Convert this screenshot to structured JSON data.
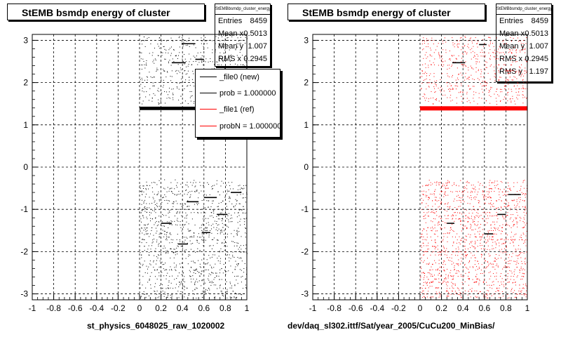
{
  "chart_data": [
    {
      "type": "scatter",
      "title": "StEMB bsmdp energy of cluster",
      "xlabel": "st_physics_6048025_raw_1020002",
      "xlim": [
        -1,
        1
      ],
      "ylim": [
        -3.14,
        3.14
      ],
      "x_ticks": [
        -1,
        -0.8,
        -0.6,
        -0.4,
        -0.2,
        0,
        0.2,
        0.4,
        0.6,
        0.8,
        1
      ],
      "y_ticks": [
        -3,
        -2,
        -1,
        0,
        1,
        2,
        3
      ],
      "grid": true,
      "marker_color": "#000000",
      "stats": {
        "name": "StEMBbsmdp_cluster_energy",
        "rows": [
          {
            "label": "Entries",
            "value": "8459"
          },
          {
            "label": "Mean x",
            "value": "0.5013"
          },
          {
            "label": "Mean y",
            "value": "1.007"
          },
          {
            "label": "RMS x",
            "value": "0.2945"
          }
        ]
      },
      "legend": {
        "placement": "right",
        "entries": [
          {
            "label": "_file0 (new)",
            "color": "#000000"
          },
          {
            "label": "prob = 1.000000",
            "color": "#000000"
          },
          {
            "label": "_file1 (ref)",
            "color": "#ff0000"
          },
          {
            "label": "probN = 1.000000",
            "color": "#ff0000"
          }
        ]
      },
      "bands": [
        {
          "x_range": [
            0,
            1
          ],
          "y": 1.39,
          "thickness": 0.08
        }
      ],
      "segments": [
        {
          "x": [
            0.4,
            0.52
          ],
          "y": 2.92
        },
        {
          "x": [
            0.3,
            0.43
          ],
          "y": 2.47
        },
        {
          "x": [
            0.52,
            0.6
          ],
          "y": 2.55
        },
        {
          "x": [
            0.2,
            0.3
          ],
          "y": -1.33
        },
        {
          "x": [
            0.44,
            0.55
          ],
          "y": -0.82
        },
        {
          "x": [
            0.6,
            0.72
          ],
          "y": -0.72
        },
        {
          "x": [
            0.85,
            0.95
          ],
          "y": -0.6
        },
        {
          "x": [
            0.72,
            0.82
          ],
          "y": -1.12
        },
        {
          "x": [
            0.58,
            0.66
          ],
          "y": -1.55
        },
        {
          "x": [
            0.36,
            0.45
          ],
          "y": -1.82
        }
      ],
      "cloud": [
        {
          "x_range": [
            0,
            1
          ],
          "y_range": [
            1.5,
            3.1
          ],
          "density": 500
        },
        {
          "x_range": [
            0,
            1
          ],
          "y_range": [
            -3.1,
            -0.3
          ],
          "density": 1100
        }
      ]
    },
    {
      "type": "scatter",
      "title": "StEMB bsmdp energy of cluster",
      "xlabel": "dev/daq_sl302.ittf/Sat/year_2005/CuCu200_MinBias/",
      "xlim": [
        -1,
        1
      ],
      "ylim": [
        -3.14,
        3.14
      ],
      "x_ticks": [
        -1,
        -0.8,
        -0.6,
        -0.4,
        -0.2,
        0,
        0.2,
        0.4,
        0.6,
        0.8,
        1
      ],
      "y_ticks": [
        -3,
        -2,
        -1,
        0,
        1,
        2,
        3
      ],
      "grid": true,
      "marker_color": "#ff0000",
      "segment_color": "#000000",
      "stats": {
        "name": "StEMBbsmdp_cluster_energy",
        "rows": [
          {
            "label": "Entries",
            "value": "8459"
          },
          {
            "label": "Mean x",
            "value": "0.5013"
          },
          {
            "label": "Mean y",
            "value": "1.007"
          },
          {
            "label": "RMS x",
            "value": "0.2945"
          },
          {
            "label": "RMS y",
            "value": "1.197"
          }
        ]
      },
      "bands": [
        {
          "x_range": [
            0,
            1
          ],
          "y": 1.39,
          "thickness": 0.1
        }
      ],
      "segments": [
        {
          "x": [
            0.3,
            0.42
          ],
          "y": 2.47
        },
        {
          "x": [
            0.55,
            0.62
          ],
          "y": 2.9
        },
        {
          "x": [
            0.25,
            0.32
          ],
          "y": -1.33
        },
        {
          "x": [
            0.82,
            0.94
          ],
          "y": -0.65
        },
        {
          "x": [
            0.72,
            0.8
          ],
          "y": -1.12
        },
        {
          "x": [
            0.6,
            0.68
          ],
          "y": -1.58
        }
      ],
      "cloud": [
        {
          "x_range": [
            0,
            1
          ],
          "y_range": [
            1.5,
            3.1
          ],
          "density": 600
        },
        {
          "x_range": [
            0,
            1
          ],
          "y_range": [
            -3.1,
            -0.3
          ],
          "density": 1400
        }
      ]
    }
  ]
}
